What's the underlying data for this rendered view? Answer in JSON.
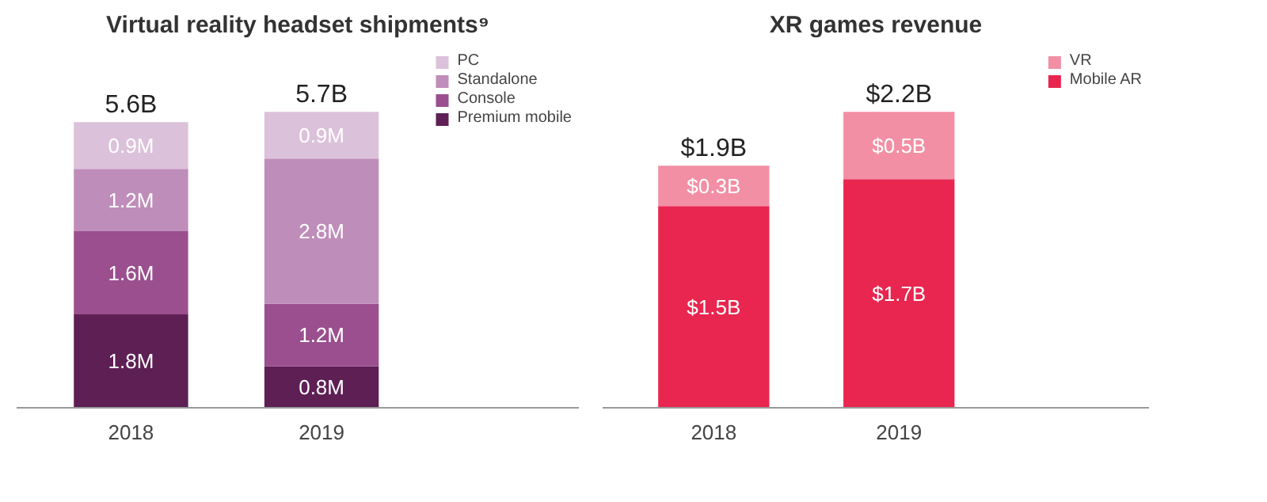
{
  "chart_data": [
    {
      "type": "bar",
      "title": "Virtual reality headset shipments⁹",
      "categories": [
        "2018",
        "2019"
      ],
      "stacked": true,
      "legend": "top right",
      "grid": false,
      "series": [
        {
          "name": "Premium mobile",
          "color": "#5e1f55",
          "values": [
            1.8,
            0.8
          ],
          "value_labels": [
            "1.8M",
            "0.8M"
          ]
        },
        {
          "name": "Console",
          "color": "#9b4f8e",
          "values": [
            1.6,
            1.2
          ],
          "value_labels": [
            "1.6M",
            "1.2M"
          ]
        },
        {
          "name": "Standalone",
          "color": "#bf8dba",
          "values": [
            1.2,
            2.8
          ],
          "value_labels": [
            "1.2M",
            "2.8M"
          ]
        },
        {
          "name": "PC",
          "color": "#dcc1da",
          "values": [
            0.9,
            0.9
          ],
          "value_labels": [
            "0.9M",
            "0.9M"
          ]
        }
      ],
      "totals": [
        "5.6B",
        "5.7B"
      ]
    },
    {
      "type": "bar",
      "title": "XR games revenue",
      "categories": [
        "2018",
        "2019"
      ],
      "stacked": true,
      "legend": "top right",
      "grid": false,
      "series": [
        {
          "name": "Mobile AR",
          "color": "#e8264f",
          "values": [
            1.5,
            1.7
          ],
          "value_labels": [
            "$1.5B",
            "$1.7B"
          ]
        },
        {
          "name": "VR",
          "color": "#f28fa4",
          "values": [
            0.3,
            0.5
          ],
          "value_labels": [
            "$0.3B",
            "$0.5B"
          ]
        }
      ],
      "totals": [
        "$1.9B",
        "$2.2B"
      ]
    }
  ]
}
